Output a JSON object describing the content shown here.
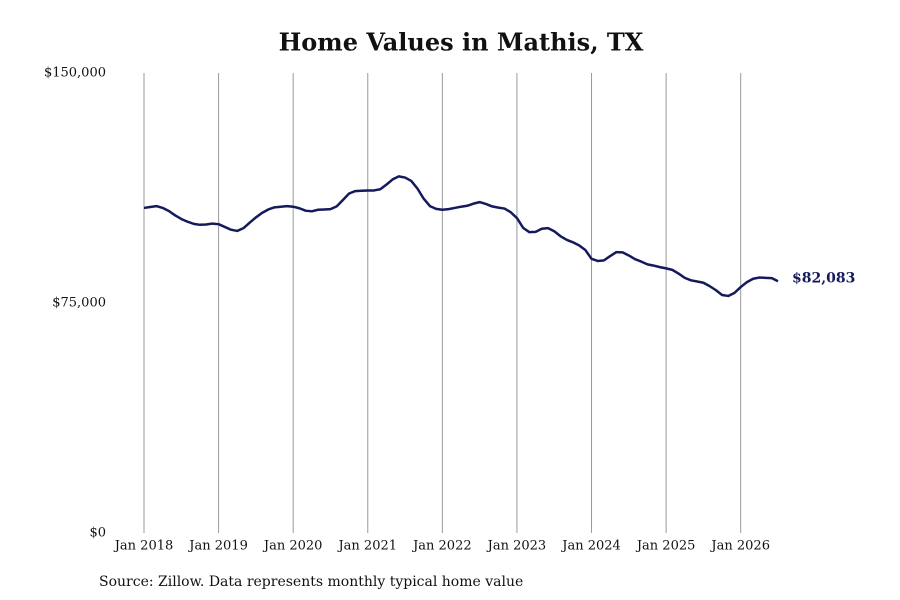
{
  "chart_data": {
    "type": "line",
    "title": "Home Values in Mathis, TX",
    "source": "Source: Zillow. Data represents monthly typical home value",
    "x": [
      "2018-01",
      "2018-02",
      "2018-03",
      "2018-04",
      "2018-05",
      "2018-06",
      "2018-07",
      "2018-08",
      "2018-09",
      "2018-10",
      "2018-11",
      "2018-12",
      "2019-01",
      "2019-02",
      "2019-03",
      "2019-04",
      "2019-05",
      "2019-06",
      "2019-07",
      "2019-08",
      "2019-09",
      "2019-10",
      "2019-11",
      "2019-12",
      "2020-01",
      "2020-02",
      "2020-03",
      "2020-04",
      "2020-05",
      "2020-06",
      "2020-07",
      "2020-08",
      "2020-09",
      "2020-10",
      "2020-11",
      "2020-12",
      "2021-01",
      "2021-02",
      "2021-03",
      "2021-04",
      "2021-05",
      "2021-06",
      "2021-07",
      "2021-08",
      "2021-09",
      "2021-10",
      "2021-11",
      "2021-12",
      "2022-01",
      "2022-02",
      "2022-03",
      "2022-04",
      "2022-05",
      "2022-06",
      "2022-07",
      "2022-08",
      "2022-09",
      "2022-10",
      "2022-11",
      "2022-12",
      "2023-01",
      "2023-02",
      "2023-03",
      "2023-04",
      "2023-05",
      "2023-06",
      "2023-07",
      "2023-08",
      "2023-09",
      "2023-10",
      "2023-11",
      "2023-12",
      "2024-01",
      "2024-02",
      "2024-03",
      "2024-04",
      "2024-05",
      "2024-06",
      "2024-07",
      "2024-08",
      "2024-09",
      "2024-10",
      "2024-11",
      "2024-12",
      "2025-01",
      "2025-02",
      "2025-03",
      "2025-04",
      "2025-05",
      "2025-06",
      "2025-07",
      "2025-08",
      "2025-09",
      "2025-10",
      "2025-11",
      "2025-12",
      "2026-01",
      "2026-02",
      "2026-03",
      "2026-04",
      "2026-05",
      "2026-06",
      "2026-07"
    ],
    "series": [
      {
        "name": "Home value",
        "color": "#141a5c",
        "values": [
          106000,
          106300,
          106600,
          106000,
          105000,
          103600,
          102400,
          101500,
          100800,
          100500,
          100600,
          100900,
          100700,
          99800,
          98900,
          98500,
          99400,
          101200,
          102900,
          104400,
          105500,
          106200,
          106400,
          106600,
          106400,
          105900,
          105100,
          104900,
          105400,
          105500,
          105600,
          106500,
          108600,
          110700,
          111500,
          111600,
          111700,
          111700,
          112100,
          113600,
          115300,
          116300,
          115900,
          114800,
          112300,
          109000,
          106600,
          105700,
          105400,
          105600,
          106000,
          106400,
          106700,
          107400,
          107900,
          107300,
          106500,
          106100,
          105800,
          104600,
          102700,
          99500,
          98100,
          98200,
          99200,
          99400,
          98400,
          96800,
          95600,
          94800,
          93800,
          92300,
          89400,
          88700,
          88900,
          90300,
          91600,
          91500,
          90500,
          89300,
          88500,
          87600,
          87200,
          86700,
          86300,
          85800,
          84600,
          83200,
          82400,
          82000,
          81600,
          80500,
          79200,
          77600,
          77300,
          78300,
          80200,
          81800,
          82900,
          83300,
          83200,
          83100,
          82083
        ],
        "value_labels": [
          null,
          null,
          null,
          null,
          null,
          null,
          null,
          null,
          null,
          null,
          null,
          null,
          null,
          null,
          null,
          null,
          null,
          null,
          null,
          null,
          null,
          null,
          null,
          null,
          null,
          null,
          null,
          null,
          null,
          null,
          null,
          null,
          null,
          null,
          null,
          null,
          null,
          null,
          null,
          null,
          null,
          null,
          null,
          null,
          null,
          null,
          null,
          null,
          null,
          null,
          null,
          null,
          null,
          null,
          null,
          null,
          null,
          null,
          null,
          null,
          null,
          null,
          null,
          null,
          null,
          null,
          null,
          null,
          null,
          null,
          null,
          null,
          null,
          null,
          null,
          null,
          null,
          null,
          null,
          null,
          null,
          null,
          null,
          null,
          null,
          null,
          null,
          null,
          null,
          null,
          null,
          null,
          null,
          null,
          null,
          null,
          null,
          null,
          null,
          null,
          null,
          null,
          "$82,083"
        ]
      }
    ],
    "xlim": [
      "2018-01",
      "2026-07"
    ],
    "xticks": [
      {
        "value": "2018-01",
        "label": "Jan 2018"
      },
      {
        "value": "2019-01",
        "label": "Jan 2019"
      },
      {
        "value": "2020-01",
        "label": "Jan 2020"
      },
      {
        "value": "2021-01",
        "label": "Jan 2021"
      },
      {
        "value": "2022-01",
        "label": "Jan 2022"
      },
      {
        "value": "2023-01",
        "label": "Jan 2023"
      },
      {
        "value": "2024-01",
        "label": "Jan 2024"
      },
      {
        "value": "2025-01",
        "label": "Jan 2025"
      },
      {
        "value": "2026-01",
        "label": "Jan 2026"
      }
    ],
    "ylim": [
      0,
      150000
    ],
    "yticks": [
      {
        "value": 0,
        "label": "$0"
      },
      {
        "value": 75000,
        "label": "$75,000"
      },
      {
        "value": 150000,
        "label": "$150,000"
      }
    ],
    "grid": "x"
  }
}
